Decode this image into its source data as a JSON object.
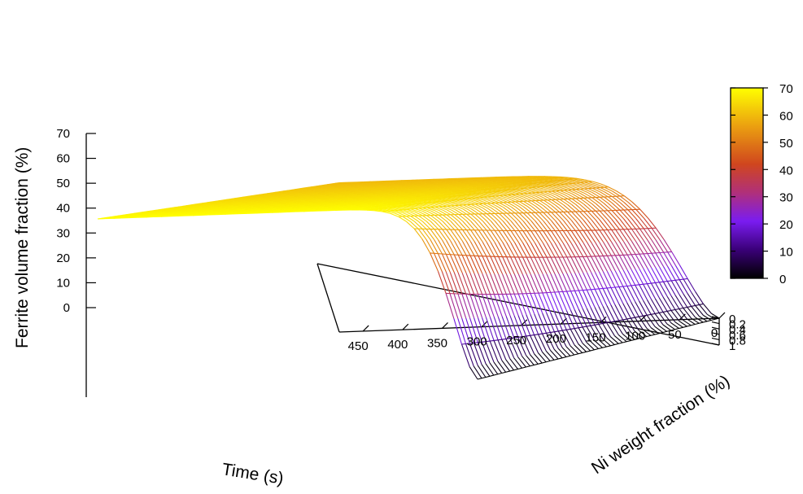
{
  "chart_data": {
    "type": "surface3d",
    "title": "",
    "xlabel": "Time (s)",
    "ylabel": "Ni weight fraction (%)",
    "zlabel": "Ferrite volume fraction (%)",
    "xlim": [
      0,
      480
    ],
    "ylim": [
      0,
      1
    ],
    "zlim": [
      0,
      70
    ],
    "x_ticks": [
      0,
      50,
      100,
      150,
      200,
      250,
      300,
      350,
      400,
      450
    ],
    "y_ticks": [
      0,
      0.2,
      0.4,
      0.6,
      0.8,
      1
    ],
    "z_ticks": [
      0,
      10,
      20,
      30,
      40,
      50,
      60,
      70
    ],
    "colorbar": {
      "range": [
        0,
        70
      ],
      "ticks": [
        0,
        10,
        20,
        30,
        40,
        50,
        60,
        70
      ],
      "palette": [
        "#000000",
        "#4b0082",
        "#8a2be2",
        "#c03a5a",
        "#d2501e",
        "#e8920e",
        "#ffff00"
      ]
    },
    "grid": false,
    "legend": "none",
    "surface_description": {
      "ni_fraction": [
        0,
        0.2,
        0.4,
        0.6,
        0.8,
        1
      ],
      "plateau_ferrite_percent": [
        70,
        68,
        66,
        64,
        62,
        60
      ],
      "time_of_half_transformation_s": [
        40,
        45,
        50,
        55,
        60,
        65
      ]
    }
  }
}
